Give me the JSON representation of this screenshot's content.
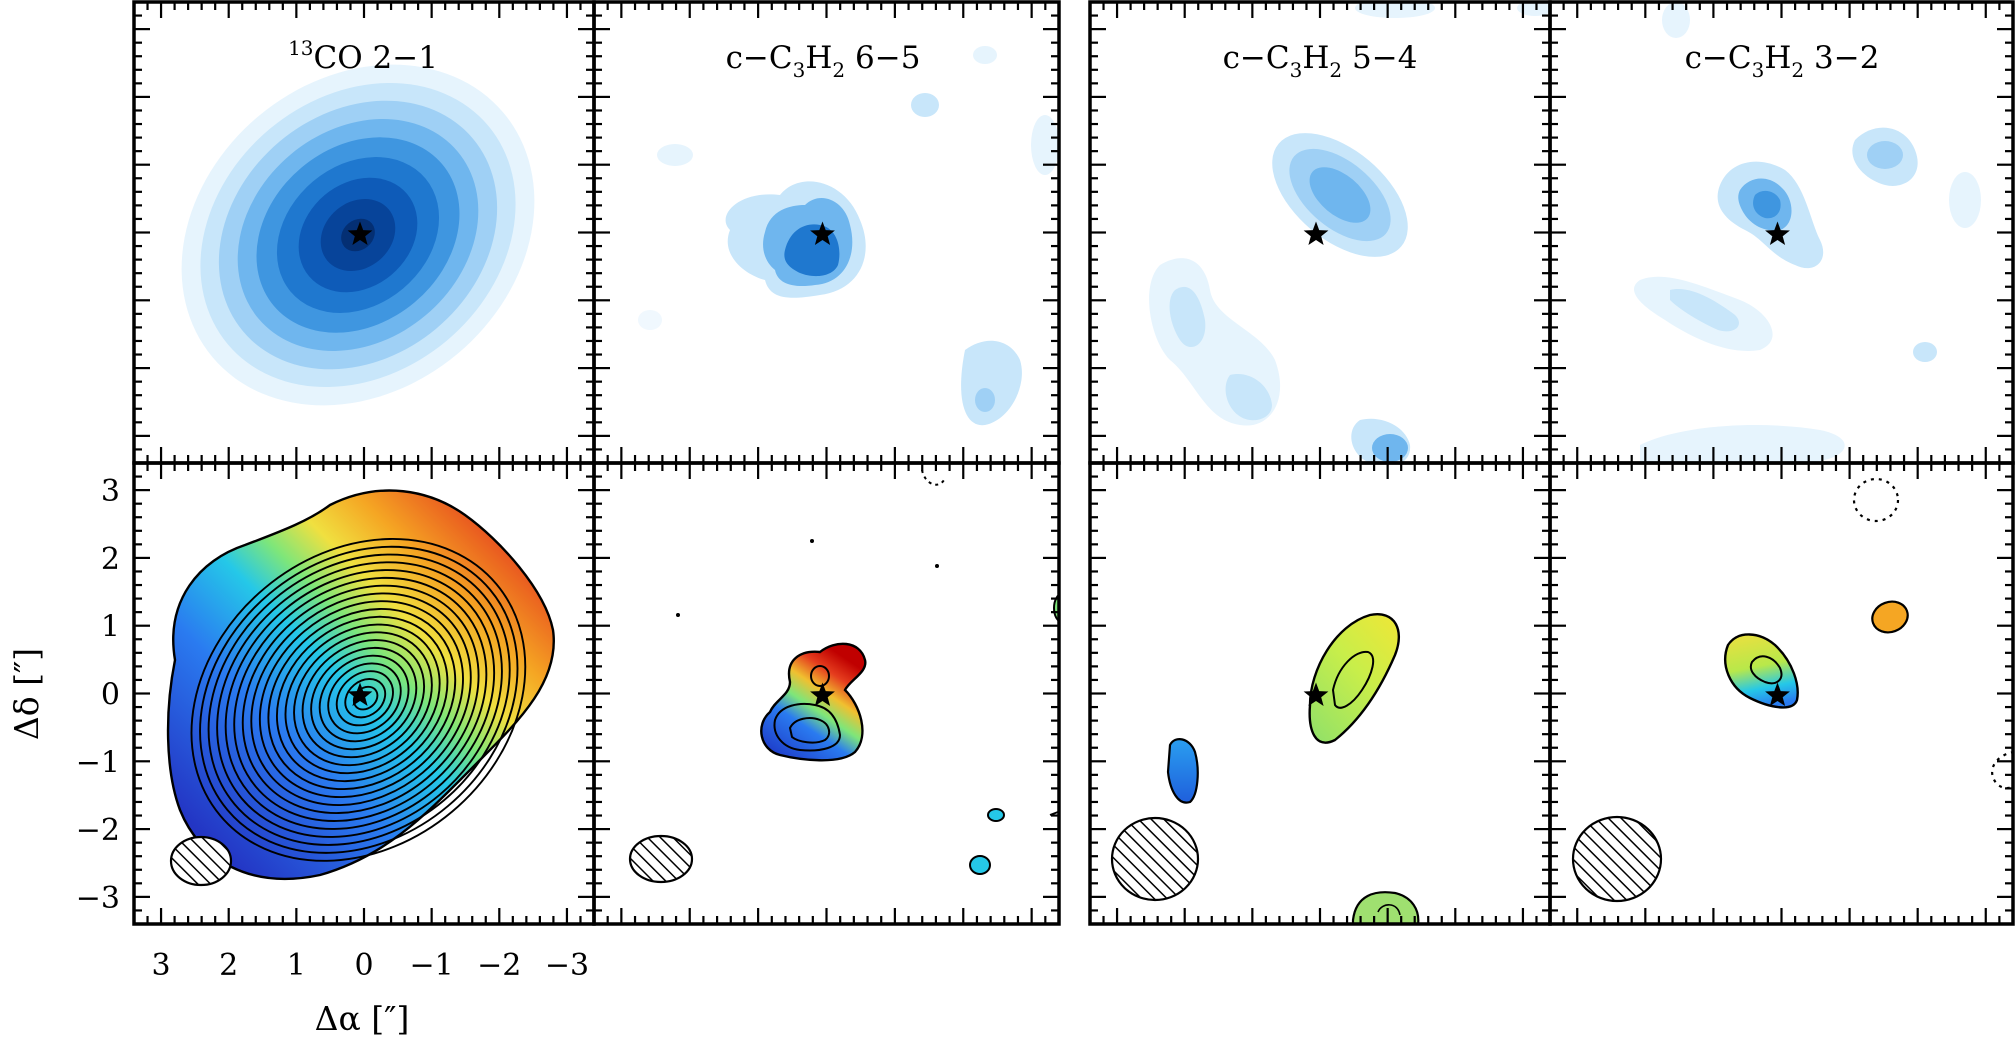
{
  "figure": {
    "xlabel": "Δα [″]",
    "ylabel": "Δδ [″]",
    "x_ticks": [
      "3",
      "2",
      "1",
      "0",
      "−1",
      "−2",
      "−3"
    ],
    "y_ticks": [
      "3",
      "2",
      "1",
      "0",
      "−1",
      "−2",
      "−3"
    ],
    "panel_titles": [
      {
        "pre": "",
        "sup": "13",
        "mid": "CO 2−1",
        "sub1": "",
        "mid2": "",
        "sub2": "",
        "post": ""
      },
      {
        "pre": "c−C",
        "sup": "",
        "mid": "",
        "sub1": "3",
        "mid2": "H",
        "sub2": "2",
        "post": " 6−5"
      },
      {
        "pre": "c−C",
        "sup": "",
        "mid": "",
        "sub1": "3",
        "mid2": "H",
        "sub2": "2",
        "post": " 5−4"
      },
      {
        "pre": "c−C",
        "sup": "",
        "mid": "",
        "sub1": "3",
        "mid2": "H",
        "sub2": "2",
        "post": " 3−2"
      }
    ],
    "colors": {
      "blue_ramp": [
        "#e6f4fd",
        "#c8e6fa",
        "#9fd0f5",
        "#6fb6ee",
        "#3f96e0",
        "#1f78cf",
        "#0e5bb8",
        "#07449a",
        "#042f73"
      ],
      "velocity_ramp": [
        "#2335c4",
        "#2a7bf0",
        "#25c8e8",
        "#7ee67a",
        "#f0e040",
        "#f5a623",
        "#e53d1e",
        "#c00000"
      ]
    }
  },
  "chart_data": {
    "type": "contour",
    "x_range": [
      3.4,
      -3.4
    ],
    "y_range": [
      -3.4,
      3.4
    ],
    "source_position": [
      0,
      0
    ],
    "panels": [
      {
        "title": "13CO 2-1",
        "moment0_peak": [
          0,
          0.05
        ],
        "moment1_gradient": "blue south-east to red north-west",
        "moment0_extent_radius": 3.0,
        "contour_levels": 20,
        "beam": {
          "x": 2.35,
          "y": -2.45,
          "major": 0.85,
          "minor": 0.65
        }
      },
      {
        "title": "c-C3H2 6-5",
        "moment0_peak": [
          0.1,
          -0.3
        ],
        "moment1_gradient": "blue south to red north",
        "contour_levels": 4,
        "beam": {
          "x": 2.6,
          "y": -2.45,
          "major": 0.95,
          "minor": 0.65
        }
      },
      {
        "title": "c-C3H2 5-4",
        "moment0_peak": [
          -0.3,
          0.7
        ],
        "moment1_gradient": "green-yellow north-east lobe",
        "contour_levels": 2,
        "beam": {
          "x": 2.35,
          "y": -2.45,
          "major": 1.3,
          "minor": 1.2
        }
      },
      {
        "title": "c-C3H2 3-2",
        "moment0_peak": [
          0.2,
          0.55
        ],
        "moment1_gradient": "green-yellow north-east lobe",
        "contour_levels": 2,
        "beam": {
          "x": 2.35,
          "y": -2.45,
          "major": 1.35,
          "minor": 1.3
        }
      }
    ]
  }
}
